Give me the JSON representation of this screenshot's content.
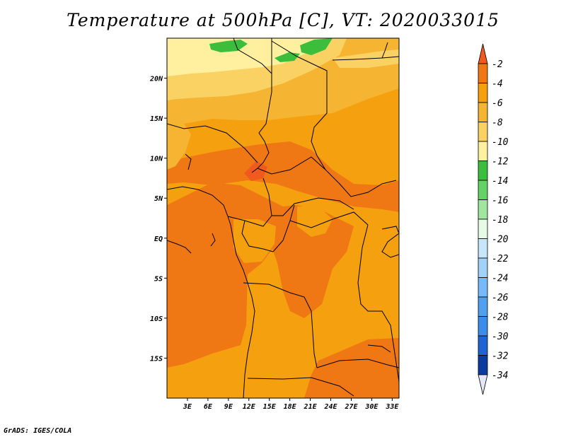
{
  "title": "Temperature at 500hPa [C], VT: 2020033015",
  "footer": "GrADS: IGES/COLA",
  "chart_data": {
    "type": "heatmap",
    "title": "Temperature at 500hPa [C], VT: 2020033015",
    "xlabel": "",
    "ylabel": "",
    "lon_range": [
      0,
      34
    ],
    "lat_range": [
      -20,
      25
    ],
    "x_ticks": [
      {
        "value": 3,
        "label": "3E"
      },
      {
        "value": 6,
        "label": "6E"
      },
      {
        "value": 9,
        "label": "9E"
      },
      {
        "value": 12,
        "label": "12E"
      },
      {
        "value": 15,
        "label": "15E"
      },
      {
        "value": 18,
        "label": "18E"
      },
      {
        "value": 21,
        "label": "21E"
      },
      {
        "value": 24,
        "label": "24E"
      },
      {
        "value": 27,
        "label": "27E"
      },
      {
        "value": 30,
        "label": "30E"
      },
      {
        "value": 33,
        "label": "33E"
      }
    ],
    "y_ticks": [
      {
        "value": 20,
        "label": "20N"
      },
      {
        "value": 15,
        "label": "15N"
      },
      {
        "value": 10,
        "label": "10N"
      },
      {
        "value": 5,
        "label": "5N"
      },
      {
        "value": 0,
        "label": "EQ"
      },
      {
        "value": -5,
        "label": "5S"
      },
      {
        "value": -10,
        "label": "10S"
      },
      {
        "value": -15,
        "label": "15S"
      }
    ],
    "colorbar": {
      "levels": [
        "-2",
        "-4",
        "-6",
        "-8",
        "-10",
        "-12",
        "-14",
        "-16",
        "-18",
        "-20",
        "-22",
        "-24",
        "-26",
        "-28",
        "-30",
        "-32",
        "-34"
      ],
      "colors": [
        "#f05a1e",
        "#f07814",
        "#f5a00f",
        "#f5b432",
        "#fad264",
        "#fff0a0",
        "#3cbe3c",
        "#64d264",
        "#a0e6a0",
        "#e6fae6",
        "#c8e6fa",
        "#a0d2fa",
        "#78b9fa",
        "#50a0f0",
        "#3c8ceb",
        "#1e64d2",
        "#0a3ca0",
        "#000a64",
        "#e6e6fa"
      ]
    },
    "regions": [
      {
        "name": "-4 to -2",
        "color": "#f05a1e"
      },
      {
        "name": "-6 to -4",
        "color": "#f07814"
      },
      {
        "name": "-8 to -6",
        "color": "#f5a00f"
      },
      {
        "name": "-10 to -8",
        "color": "#f5b432"
      },
      {
        "name": "-12 to -10",
        "color": "#fad264"
      },
      {
        "name": "-14 to -12",
        "color": "#fff0a0"
      },
      {
        "name": "< -14",
        "color": "#3cbe3c"
      }
    ]
  }
}
